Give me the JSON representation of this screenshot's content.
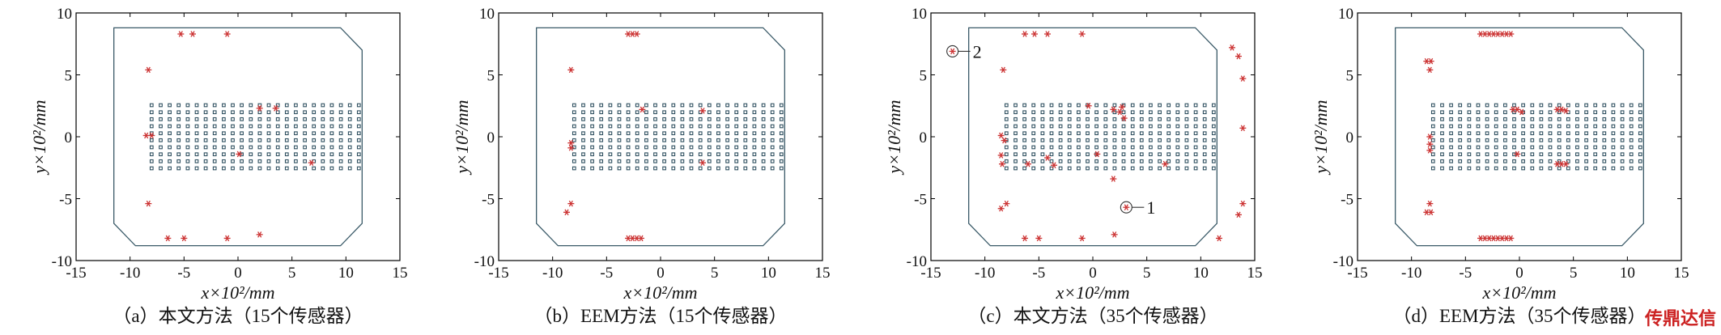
{
  "watermark": "传鼎达信",
  "colors": {
    "sensor": "#cc3333",
    "grid_cells": "#2f5060",
    "outline": "#3a5a68"
  },
  "chart_data": [
    {
      "type": "scatter",
      "caption": "（a）本文方法（15个传感器）",
      "xlabel": "x×10²/mm",
      "ylabel": "y×10²/mm",
      "xlim": [
        -15,
        15
      ],
      "ylim": [
        -10,
        10
      ],
      "xticks": [
        "-15",
        "-10",
        "-5",
        "0",
        "5",
        "10",
        "15"
      ],
      "yticks": [
        "-10",
        "-5",
        "0",
        "5",
        "10"
      ],
      "sensors": [
        [
          -4.2,
          8.3
        ],
        [
          -5.3,
          8.3
        ],
        [
          -1,
          8.3
        ],
        [
          -8.3,
          5.4
        ],
        [
          -8.5,
          0.1
        ],
        [
          -8.0,
          0.1
        ],
        [
          2.0,
          2.3
        ],
        [
          3.5,
          2.3
        ],
        [
          0.1,
          -1.4
        ],
        [
          6.8,
          -2.1
        ],
        [
          -8.3,
          -5.4
        ],
        [
          -6.5,
          -8.2
        ],
        [
          -5.0,
          -8.2
        ],
        [
          -1,
          -8.2
        ],
        [
          2.0,
          -7.9
        ]
      ],
      "callouts": []
    },
    {
      "type": "scatter",
      "caption": "（b）EEM方法（15个传感器）",
      "xlabel": "x×10²/mm",
      "ylabel": "y×10²/mm",
      "xlim": [
        -15,
        15
      ],
      "ylim": [
        -10,
        10
      ],
      "xticks": [
        "-15",
        "-10",
        "-5",
        "0",
        "5",
        "10",
        "15"
      ],
      "yticks": [
        "-10",
        "-5",
        "0",
        "5",
        "10"
      ],
      "sensors": [
        [
          -3.0,
          8.3
        ],
        [
          -2.6,
          8.3
        ],
        [
          -2.2,
          8.3
        ],
        [
          -8.3,
          5.4
        ],
        [
          -1.7,
          2.2
        ],
        [
          3.9,
          2.1
        ],
        [
          -8.3,
          -0.5
        ],
        [
          -8.3,
          -0.9
        ],
        [
          3.9,
          -2.1
        ],
        [
          -8.7,
          -6.1
        ],
        [
          -8.3,
          -5.4
        ],
        [
          -3.0,
          -8.2
        ],
        [
          -2.6,
          -8.2
        ],
        [
          -2.2,
          -8.2
        ],
        [
          -1.8,
          -8.2
        ]
      ],
      "callouts": []
    },
    {
      "type": "scatter",
      "caption": "（c）本文方法（35个传感器）",
      "xlabel": "x×10²/mm",
      "ylabel": "y×10²/mm",
      "xlim": [
        -15,
        15
      ],
      "ylim": [
        -10,
        10
      ],
      "xticks": [
        "-15",
        "-10",
        "-5",
        "0",
        "5",
        "10",
        "15"
      ],
      "yticks": [
        "-10",
        "-5",
        "0",
        "5",
        "10"
      ],
      "sensors": [
        [
          -13,
          6.9
        ],
        [
          -6.3,
          8.3
        ],
        [
          -5.4,
          8.3
        ],
        [
          -4.2,
          8.3
        ],
        [
          -1,
          8.3
        ],
        [
          12.9,
          7.2
        ],
        [
          13.5,
          6.5
        ],
        [
          13.9,
          4.7
        ],
        [
          -8.3,
          5.4
        ],
        [
          -0.4,
          2.5
        ],
        [
          1.9,
          2.2
        ],
        [
          2.5,
          2.0
        ],
        [
          13.9,
          0.7
        ],
        [
          -8.5,
          0.1
        ],
        [
          -8.2,
          -0.3
        ],
        [
          -8.5,
          -1.5
        ],
        [
          -8.4,
          -2.2
        ],
        [
          -4.2,
          -1.7
        ],
        [
          -6.0,
          -2.2
        ],
        [
          -3.6,
          -2.3
        ],
        [
          0.4,
          -1.4
        ],
        [
          1.9,
          -3.4
        ],
        [
          2.9,
          1.5
        ],
        [
          6.7,
          -2.2
        ],
        [
          -8.5,
          -5.8
        ],
        [
          -8.0,
          -5.4
        ],
        [
          3.1,
          -5.7
        ],
        [
          13.9,
          -5.4
        ],
        [
          13.5,
          -6.3
        ],
        [
          -6.3,
          -8.2
        ],
        [
          -5.0,
          -8.2
        ],
        [
          -1,
          -8.2
        ],
        [
          2.0,
          -7.9
        ],
        [
          11.7,
          -8.2
        ],
        [
          2.7,
          2.4
        ]
      ],
      "callouts": [
        {
          "label": "1",
          "x": 3.1,
          "y": -5.7
        },
        {
          "label": "2",
          "x": -13,
          "y": 6.9
        }
      ]
    },
    {
      "type": "scatter",
      "caption": "（d）EEM方法（35个传感器）",
      "xlabel": "x×10²/mm",
      "ylabel": "y×10²/mm",
      "xlim": [
        -15,
        15
      ],
      "ylim": [
        -10,
        10
      ],
      "xticks": [
        "-15",
        "-10",
        "-5",
        "0",
        "5",
        "10",
        "15"
      ],
      "yticks": [
        "-10",
        "-5",
        "0",
        "5",
        "10"
      ],
      "sensors": [
        [
          -3.6,
          8.3
        ],
        [
          -3.2,
          8.3
        ],
        [
          -2.8,
          8.3
        ],
        [
          -2.4,
          8.3
        ],
        [
          -2.0,
          8.3
        ],
        [
          -1.6,
          8.3
        ],
        [
          -1.2,
          8.3
        ],
        [
          -0.8,
          8.3
        ],
        [
          -8.6,
          6.1
        ],
        [
          -8.2,
          6.1
        ],
        [
          -8.3,
          5.4
        ],
        [
          -0.6,
          2.2
        ],
        [
          -0.2,
          2.2
        ],
        [
          3.5,
          2.2
        ],
        [
          3.9,
          2.2
        ],
        [
          -8.3,
          0.0
        ],
        [
          -8.3,
          -0.6
        ],
        [
          -8.3,
          -1.1
        ],
        [
          3.5,
          -2.2
        ],
        [
          3.9,
          -2.2
        ],
        [
          4.3,
          -2.2
        ],
        [
          -8.6,
          -6.1
        ],
        [
          -8.2,
          -6.1
        ],
        [
          -8.3,
          -5.4
        ],
        [
          -3.6,
          -8.2
        ],
        [
          -3.2,
          -8.2
        ],
        [
          -2.8,
          -8.2
        ],
        [
          -2.4,
          -8.2
        ],
        [
          -2.0,
          -8.2
        ],
        [
          -1.6,
          -8.2
        ],
        [
          -1.2,
          -8.2
        ],
        [
          -0.8,
          -8.2
        ],
        [
          4.3,
          2.1
        ],
        [
          -0.2,
          -1.4
        ],
        [
          0.2,
          2.0
        ]
      ],
      "callouts": []
    }
  ]
}
